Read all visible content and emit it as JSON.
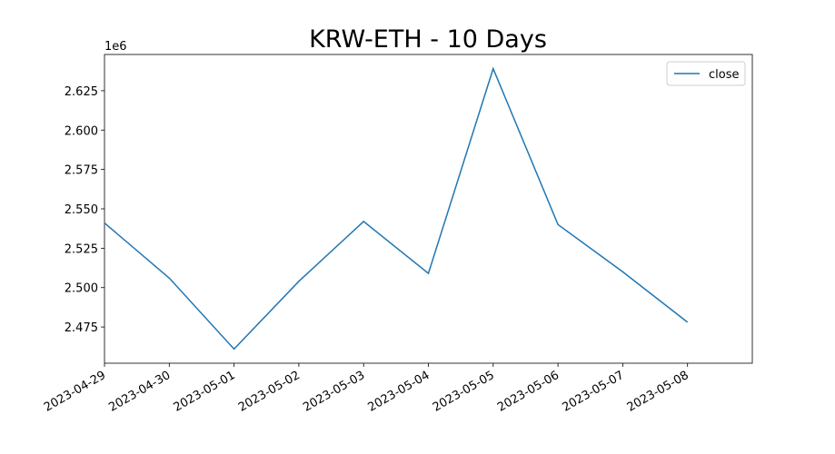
{
  "chart_data": {
    "type": "line",
    "title": "KRW-ETH - 10 Days",
    "y_offset_label": "1e6",
    "x": [
      "2023-04-29",
      "2023-04-30",
      "2023-05-01",
      "2023-05-02",
      "2023-05-03",
      "2023-05-04",
      "2023-05-05",
      "2023-05-06",
      "2023-05-07",
      "2023-05-08"
    ],
    "series": [
      {
        "name": "close",
        "color": "#1f77b4",
        "values": [
          2.541,
          2.506,
          2.461,
          2.504,
          2.542,
          2.509,
          2.639,
          2.54,
          2.51,
          2.478
        ]
      }
    ],
    "xlim": [
      "2023-04-29",
      "2023-05-09"
    ],
    "xticks": [
      "2023-04-29",
      "2023-04-30",
      "2023-05-01",
      "2023-05-02",
      "2023-05-03",
      "2023-05-04",
      "2023-05-05",
      "2023-05-06",
      "2023-05-07",
      "2023-05-08"
    ],
    "ylim": [
      2.452,
      2.648
    ],
    "yticks": [
      2.475,
      {
        "value": 2.5,
        "label": "2.500"
      },
      2.525,
      {
        "value": 2.55,
        "label": "2.550"
      },
      2.575,
      {
        "value": 2.6,
        "label": "2.600"
      },
      2.625
    ],
    "grid": false,
    "legend": "upper right"
  }
}
